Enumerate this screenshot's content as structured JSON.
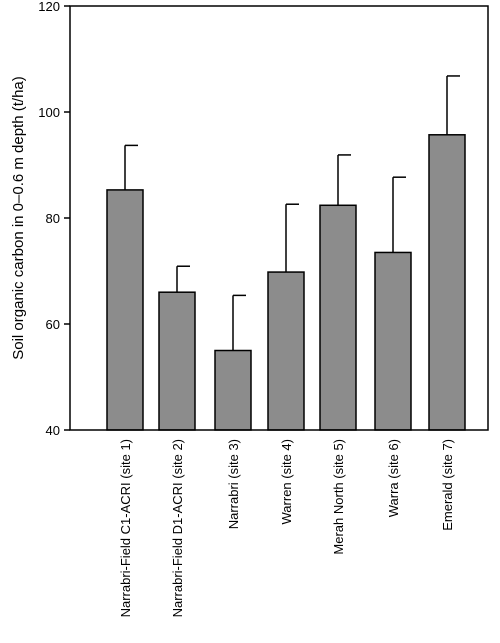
{
  "chart_data": {
    "type": "bar",
    "ylabel": "Soil organic carbon in 0–0.6 m depth (t/ha)",
    "xlabel": "",
    "ylim": [
      40,
      120
    ],
    "yticks": [
      40,
      60,
      80,
      100,
      120
    ],
    "grid": false,
    "colors": {
      "bar": "#8c8c8c",
      "stroke": "#000000"
    },
    "categories": [
      "Narrabri-Field C1-ACRI (site 1)",
      "Narrabri-Field D1-ACRI (site 2)",
      "Narrabri (site 3)",
      "Warren (site 4)",
      "Merah North (site 5)",
      "Warra (site 6)",
      "Emerald (site 7)"
    ],
    "values": [
      85.3,
      66.0,
      55.0,
      69.8,
      82.4,
      73.5,
      95.7
    ],
    "error_upper": [
      93.7,
      70.9,
      65.4,
      82.6,
      91.9,
      87.7,
      106.8
    ]
  }
}
